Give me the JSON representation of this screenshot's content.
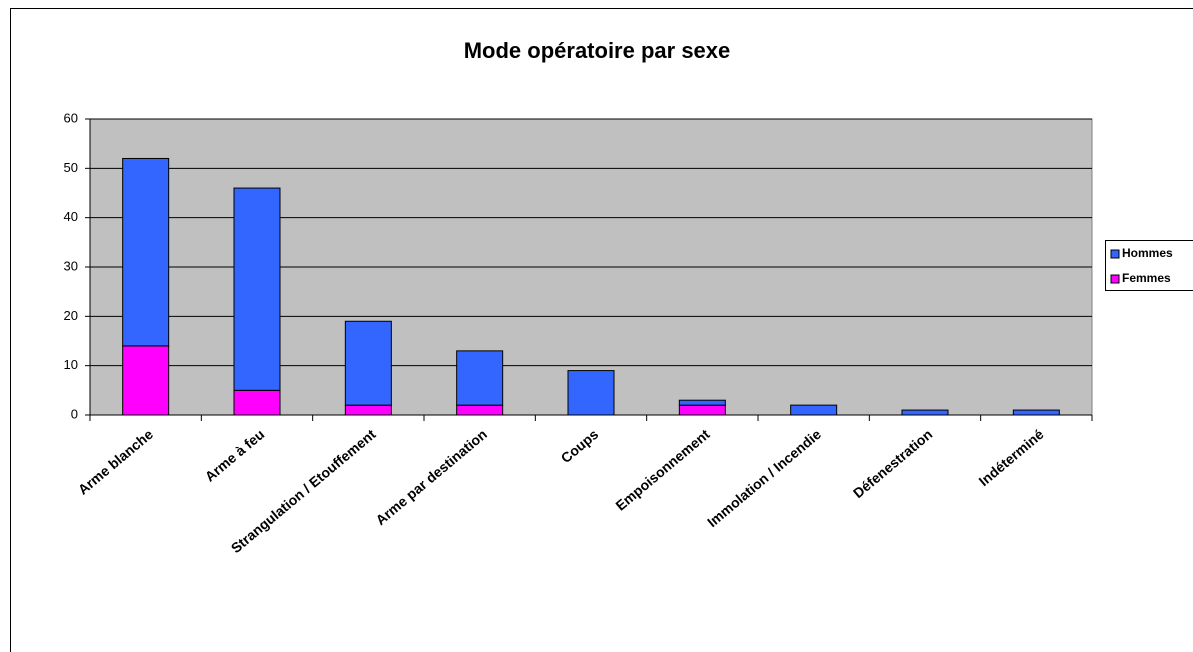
{
  "chart_data": {
    "type": "bar",
    "stacked": true,
    "title": "Mode opératoire par sexe",
    "categories": [
      "Arme blanche",
      "Arme à feu",
      "Strangulation / Etouffement",
      "Arme par destination",
      "Coups",
      "Empoisonnement",
      "Immolation / Incendie",
      "Défenestration",
      "Indéterminé"
    ],
    "series": [
      {
        "name": "Hommes",
        "color": "#3366ff",
        "values": [
          38,
          41,
          17,
          11,
          9,
          1,
          2,
          1,
          1
        ]
      },
      {
        "name": "Femmes",
        "color": "#ff00ff",
        "values": [
          14,
          5,
          2,
          2,
          0,
          2,
          0,
          0,
          0
        ]
      }
    ],
    "ylim": [
      0,
      60
    ],
    "yticks": [
      0,
      10,
      20,
      30,
      40,
      50,
      60
    ],
    "grid": true,
    "legend": "right"
  }
}
